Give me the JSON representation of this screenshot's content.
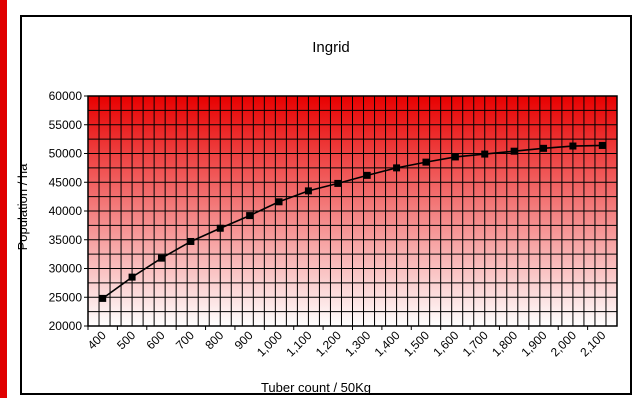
{
  "chart_data": {
    "type": "line",
    "title": "Ingrid",
    "xlabel": "Tuber count / 50Kg",
    "ylabel": "Population / ha",
    "ylim": [
      20000,
      60000
    ],
    "yticks": [
      "60000",
      "55000",
      "50000",
      "45000",
      "40000",
      "35000",
      "30000",
      "25000",
      "20000"
    ],
    "categories": [
      "400",
      "500",
      "600",
      "700",
      "800",
      "900",
      "1,000",
      "1,100",
      "1,200",
      "1,300",
      "1,400",
      "1,500",
      "1,600",
      "1,700",
      "1,800",
      "1,900",
      "2,000",
      "2,100"
    ],
    "series": [
      {
        "values": [
          24800,
          28500,
          31800,
          34700,
          37000,
          39200,
          41600,
          43500,
          44800,
          46200,
          47500,
          48500,
          49400,
          49900,
          50400,
          50900,
          51300,
          51400
        ]
      }
    ],
    "grid": true,
    "legend": "none",
    "plot_gradient": [
      "#e80000",
      "#ffffff"
    ],
    "line_color": "#000000"
  }
}
